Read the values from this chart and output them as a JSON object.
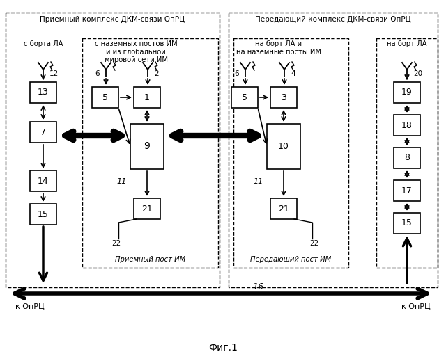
{
  "title": "Фиг.1",
  "bg_color": "#ffffff",
  "outer_left_label": "Приемный комплекс ДКМ-связи ОпРЦ",
  "outer_right_label": "Передающий комплекс ДКМ-связи ОпРЦ",
  "sub_left_label": "с борта ЛА",
  "sub_mid_left_label": "с наземных постов ИМ\nи из глобальной\nмировой сети ИМ",
  "sub_mid_right_label": "на борт ЛА и\nна наземные посты ИМ",
  "sub_right_label": "на борт ЛА",
  "inner_left_label": "Приемный пост ИМ",
  "inner_right_label": "Передающий пост ИМ",
  "bottom_left_label": "к ОпРЦ",
  "bottom_right_label": "к ОпРЦ",
  "bus_label": "16"
}
